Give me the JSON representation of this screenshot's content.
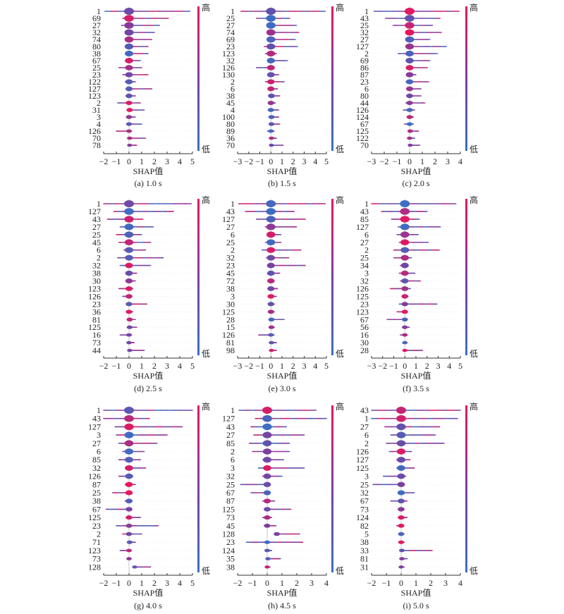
{
  "colors": {
    "high": "#e8175d",
    "mid": "#7b3fa0",
    "low": "#3b6fc4",
    "zero_line": "#c8c8c8"
  },
  "chart_data": [
    {
      "type": "scatter",
      "subtype": "shap-summary",
      "caption": "(a) 1.0 s",
      "xlabel": "SHAP值",
      "xlim": [
        -2,
        5
      ],
      "xticks": [
        -2,
        -1,
        0,
        1,
        2,
        3,
        4,
        5
      ],
      "colorbar": {
        "high": "高",
        "low": "低"
      },
      "features": [
        "1",
        "69",
        "27",
        "32",
        "74",
        "80",
        "38",
        "67",
        "25",
        "23",
        "122",
        "127",
        "123",
        "2",
        "31",
        "3",
        "4",
        "126",
        "70",
        "78"
      ],
      "ranges": [
        [
          -1.9,
          4.8
        ],
        [
          -0.5,
          3.1
        ],
        [
          -0.6,
          2.4
        ],
        [
          -0.2,
          2.0
        ],
        [
          -0.2,
          1.8
        ],
        [
          -0.2,
          1.5
        ],
        [
          -0.2,
          1.5
        ],
        [
          -0.3,
          0.9
        ],
        [
          -0.8,
          1.0
        ],
        [
          -0.5,
          1.5
        ],
        [
          -0.3,
          0.5
        ],
        [
          -0.1,
          1.8
        ],
        [
          -0.1,
          0.5
        ],
        [
          -0.9,
          0.9
        ],
        [
          0,
          1.2
        ],
        [
          -0.1,
          0.5
        ],
        [
          -0.1,
          1.0
        ],
        [
          -1.0,
          0.2
        ],
        [
          0,
          1.3
        ],
        [
          0,
          0.6
        ]
      ]
    },
    {
      "type": "scatter",
      "subtype": "shap-summary",
      "caption": "(b) 1.5 s",
      "xlabel": "SHAP值",
      "xlim": [
        -3,
        5
      ],
      "xticks": [
        -3,
        -2,
        -1,
        0,
        1,
        2,
        3,
        4,
        5
      ],
      "colorbar": {
        "high": "高",
        "low": "低"
      },
      "features": [
        "1",
        "25",
        "27",
        "74",
        "69",
        "23",
        "123",
        "32",
        "126",
        "130",
        "2",
        "6",
        "38",
        "45",
        "4",
        "100",
        "80",
        "89",
        "36",
        "70"
      ],
      "ranges": [
        [
          -2.7,
          4.9
        ],
        [
          -1.3,
          1.7
        ],
        [
          -0.3,
          2.3
        ],
        [
          -0.3,
          2.5
        ],
        [
          -0.3,
          2.2
        ],
        [
          -0.6,
          2.4
        ],
        [
          -0.5,
          0.5
        ],
        [
          -0.2,
          1.5
        ],
        [
          -1.3,
          0.3
        ],
        [
          -0.1,
          0.7
        ],
        [
          -0.5,
          1.2
        ],
        [
          -0.2,
          0.6
        ],
        [
          0,
          0.8
        ],
        [
          -0.1,
          0.4
        ],
        [
          -0.1,
          0.7
        ],
        [
          0,
          0.7
        ],
        [
          0,
          0.8
        ],
        [
          -0.3,
          0.3
        ],
        [
          0,
          0.5
        ],
        [
          0,
          1.1
        ]
      ]
    },
    {
      "type": "scatter",
      "subtype": "shap-summary",
      "caption": "(c) 2.0 s",
      "xlabel": "SHAP值",
      "xlim": [
        -3,
        4
      ],
      "xticks": [
        -3,
        -2,
        -1,
        0,
        1,
        2,
        3,
        4
      ],
      "colorbar": {
        "high": "高",
        "low": "低"
      },
      "features": [
        "1",
        "43",
        "25",
        "32",
        "27",
        "127",
        "2",
        "69",
        "86",
        "87",
        "23",
        "6",
        "80",
        "44",
        "126",
        "124",
        "67",
        "125",
        "122",
        "70"
      ],
      "ranges": [
        [
          -2.8,
          3.9
        ],
        [
          -1.9,
          2.4
        ],
        [
          -1.3,
          1.8
        ],
        [
          -0.3,
          2.5
        ],
        [
          -0.3,
          1.6
        ],
        [
          -0.2,
          2.9
        ],
        [
          -0.9,
          2.2
        ],
        [
          -0.1,
          1.6
        ],
        [
          -0.2,
          1.4
        ],
        [
          -0.2,
          0.5
        ],
        [
          -0.3,
          1.5
        ],
        [
          -0.2,
          0.9
        ],
        [
          -0.1,
          0.9
        ],
        [
          -0.3,
          1.2
        ],
        [
          -0.5,
          0.4
        ],
        [
          -0.1,
          0.3
        ],
        [
          -0.4,
          0.3
        ],
        [
          0,
          0.7
        ],
        [
          -0.1,
          0.4
        ],
        [
          0,
          0.8
        ]
      ]
    },
    {
      "type": "scatter",
      "subtype": "shap-summary",
      "caption": "(d) 2.5 s",
      "xlabel": "SHAP值",
      "xlim": [
        -2,
        5
      ],
      "xticks": [
        -2,
        -1,
        0,
        1,
        2,
        3,
        4,
        5
      ],
      "colorbar": {
        "high": "高",
        "low": "低"
      },
      "features": [
        "1",
        "127",
        "43",
        "27",
        "25",
        "45",
        "6",
        "2",
        "32",
        "38",
        "30",
        "123",
        "126",
        "23",
        "36",
        "81",
        "125",
        "16",
        "73",
        "44"
      ],
      "ranges": [
        [
          -2,
          4.9
        ],
        [
          -1.2,
          3.5
        ],
        [
          -1.7,
          1.1
        ],
        [
          -0.7,
          1.9
        ],
        [
          -1,
          1.0
        ],
        [
          -0.8,
          1.7
        ],
        [
          -0.4,
          1.3
        ],
        [
          -0.9,
          2.7
        ],
        [
          -0.7,
          1.7
        ],
        [
          -0.1,
          0.6
        ],
        [
          -0.1,
          0.5
        ],
        [
          -0.8,
          0.3
        ],
        [
          -0.5,
          0.2
        ],
        [
          -0.2,
          1.4
        ],
        [
          -0.1,
          0.3
        ],
        [
          0,
          0.5
        ],
        [
          0,
          0.6
        ],
        [
          -0.7,
          0.2
        ],
        [
          -0.1,
          0.4
        ],
        [
          0,
          1.2
        ]
      ]
    },
    {
      "type": "scatter",
      "subtype": "shap-summary",
      "caption": "(e) 3.0 s",
      "xlabel": "SHAP值",
      "xlim": [
        -3,
        5
      ],
      "xticks": [
        -3,
        -2,
        -1,
        0,
        1,
        2,
        3,
        4,
        5
      ],
      "colorbar": {
        "high": "高",
        "low": "低"
      },
      "features": [
        "1",
        "43",
        "127",
        "27",
        "6",
        "25",
        "2",
        "32",
        "23",
        "45",
        "72",
        "38",
        "3",
        "30",
        "125",
        "28",
        "15",
        "126",
        "81",
        "98"
      ],
      "ranges": [
        [
          -2.9,
          4.9
        ],
        [
          -2.3,
          2.1
        ],
        [
          -1.3,
          3.1
        ],
        [
          -0.5,
          2.3
        ],
        [
          -0.3,
          0.9
        ],
        [
          -0.5,
          0.9
        ],
        [
          -0.8,
          2.7
        ],
        [
          -0.4,
          1.6
        ],
        [
          -0.3,
          3.1
        ],
        [
          -0.3,
          0.8
        ],
        [
          -0.1,
          0.3
        ],
        [
          -0.1,
          0.6
        ],
        [
          -0.2,
          0.5
        ],
        [
          -0.1,
          0.3
        ],
        [
          -0.2,
          0.3
        ],
        [
          0,
          1.2
        ],
        [
          0,
          0.3
        ],
        [
          -1.1,
          0.3
        ],
        [
          0,
          0.5
        ],
        [
          0,
          0.5
        ]
      ]
    },
    {
      "type": "scatter",
      "subtype": "shap-summary",
      "caption": "(f) 3.5 s",
      "xlabel": "SHAP值",
      "xlim": [
        -3,
        5
      ],
      "xticks": [
        -3,
        -2,
        -1,
        0,
        1,
        2,
        3,
        4,
        5
      ],
      "colorbar": {
        "high": "高",
        "low": "低"
      },
      "features": [
        "1",
        "43",
        "85",
        "127",
        "6",
        "27",
        "2",
        "25",
        "34",
        "3",
        "32",
        "126",
        "125",
        "23",
        "123",
        "67",
        "56",
        "16",
        "30",
        "28"
      ],
      "ranges": [
        [
          -3,
          4.6
        ],
        [
          -2.1,
          2.0
        ],
        [
          -1.2,
          1.3
        ],
        [
          -0.6,
          3.2
        ],
        [
          -0.7,
          1.2
        ],
        [
          -0.5,
          2.1
        ],
        [
          -1,
          3.1
        ],
        [
          -1,
          0.6
        ],
        [
          -0.4,
          0.3
        ],
        [
          -0.5,
          0.9
        ],
        [
          -0.4,
          1.4
        ],
        [
          -1.3,
          0.5
        ],
        [
          -0.2,
          0.3
        ],
        [
          -0.5,
          2.9
        ],
        [
          -0.7,
          0.1
        ],
        [
          -1.6,
          0.1
        ],
        [
          -0.1,
          0.4
        ],
        [
          -0.4,
          0.1
        ],
        [
          -0.1,
          0.2
        ],
        [
          -0.1,
          1.6
        ]
      ]
    },
    {
      "type": "scatter",
      "subtype": "shap-summary",
      "caption": "(g) 4.0 s",
      "xlabel": "SHAP值",
      "xlim": [
        -2,
        5
      ],
      "xticks": [
        -2,
        -1,
        0,
        1,
        2,
        3,
        4,
        5
      ],
      "colorbar": {
        "high": "高",
        "low": "低"
      },
      "features": [
        "1",
        "43",
        "127",
        "3",
        "27",
        "6",
        "85",
        "32",
        "126",
        "87",
        "25",
        "38",
        "67",
        "125",
        "23",
        "2",
        "71",
        "123",
        "73",
        "128"
      ],
      "ranges": [
        [
          -2,
          5
        ],
        [
          -2,
          1.6
        ],
        [
          -1.1,
          4.2
        ],
        [
          -1,
          3
        ],
        [
          -0.8,
          2.2
        ],
        [
          -0.5,
          1.2
        ],
        [
          -0.8,
          0.9
        ],
        [
          -0.3,
          1.3
        ],
        [
          -0.8,
          0.3
        ],
        [
          -0.3,
          0.5
        ],
        [
          -1.3,
          0.2
        ],
        [
          -0.3,
          0.2
        ],
        [
          -1.8,
          0.2
        ],
        [
          -0.2,
          0.9
        ],
        [
          -1,
          2.3
        ],
        [
          -0.5,
          1
        ],
        [
          0,
          0.5
        ],
        [
          -0.7,
          0.1
        ],
        [
          -0.1,
          0.1
        ],
        [
          0.4,
          1.7
        ]
      ]
    },
    {
      "type": "scatter",
      "subtype": "shap-summary",
      "caption": "(h) 4.5 s",
      "xlabel": "SHAP值",
      "xlim": [
        -2,
        4
      ],
      "xticks": [
        -2,
        -1,
        0,
        1,
        2,
        3,
        4
      ],
      "colorbar": {
        "high": "高",
        "low": "低"
      },
      "features": [
        "1",
        "127",
        "43",
        "27",
        "85",
        "2",
        "6",
        "3",
        "32",
        "25",
        "67",
        "87",
        "125",
        "73",
        "45",
        "128",
        "23",
        "124",
        "35",
        "38"
      ],
      "ranges": [
        [
          -1.9,
          3.3
        ],
        [
          -0.8,
          4
        ],
        [
          -1.1,
          1.3
        ],
        [
          -0.9,
          2.5
        ],
        [
          -1.2,
          1.5
        ],
        [
          -1,
          1.5
        ],
        [
          -0.3,
          1.1
        ],
        [
          -0.6,
          2.5
        ],
        [
          -0.3,
          1.0
        ],
        [
          -1.8,
          0.2
        ],
        [
          -1.1,
          0.2
        ],
        [
          -0.3,
          0.5
        ],
        [
          -0.1,
          1.6
        ],
        [
          -0.3,
          0.3
        ],
        [
          -0.2,
          0.6
        ],
        [
          0.6,
          2.2
        ],
        [
          -1.4,
          2.4
        ],
        [
          -0.1,
          0.3
        ],
        [
          0,
          0.9
        ],
        [
          -0.1,
          0.2
        ]
      ]
    },
    {
      "type": "scatter",
      "subtype": "shap-summary",
      "caption": "(i) 5.0 s",
      "xlabel": "SHAP值",
      "xlim": [
        -2,
        4
      ],
      "xticks": [
        -2,
        -1,
        0,
        1,
        2,
        3,
        4
      ],
      "colorbar": {
        "high": "高",
        "low": "低"
      },
      "features": [
        "43",
        "1",
        "27",
        "6",
        "2",
        "126",
        "127",
        "125",
        "3",
        "25",
        "32",
        "67",
        "73",
        "124",
        "82",
        "5",
        "38",
        "33",
        "81",
        "31"
      ],
      "ranges": [
        [
          -2,
          4
        ],
        [
          -2,
          3.8
        ],
        [
          -1.1,
          2.6
        ],
        [
          -0.7,
          2.3
        ],
        [
          -1,
          2.9
        ],
        [
          -0.8,
          0.7
        ],
        [
          -0.3,
          0.6
        ],
        [
          -0.3,
          0.9
        ],
        [
          -1.2,
          0.3
        ],
        [
          -1.9,
          0.2
        ],
        [
          -0.2,
          0.9
        ],
        [
          -0.7,
          0.4
        ],
        [
          -0.2,
          0.2
        ],
        [
          -0.1,
          0.4
        ],
        [
          -0.3,
          0.1
        ],
        [
          -0.1,
          0.2
        ],
        [
          -0.1,
          0.2
        ],
        [
          0,
          2.1
        ],
        [
          0,
          0.4
        ],
        [
          -0.1,
          0.2
        ]
      ]
    }
  ]
}
